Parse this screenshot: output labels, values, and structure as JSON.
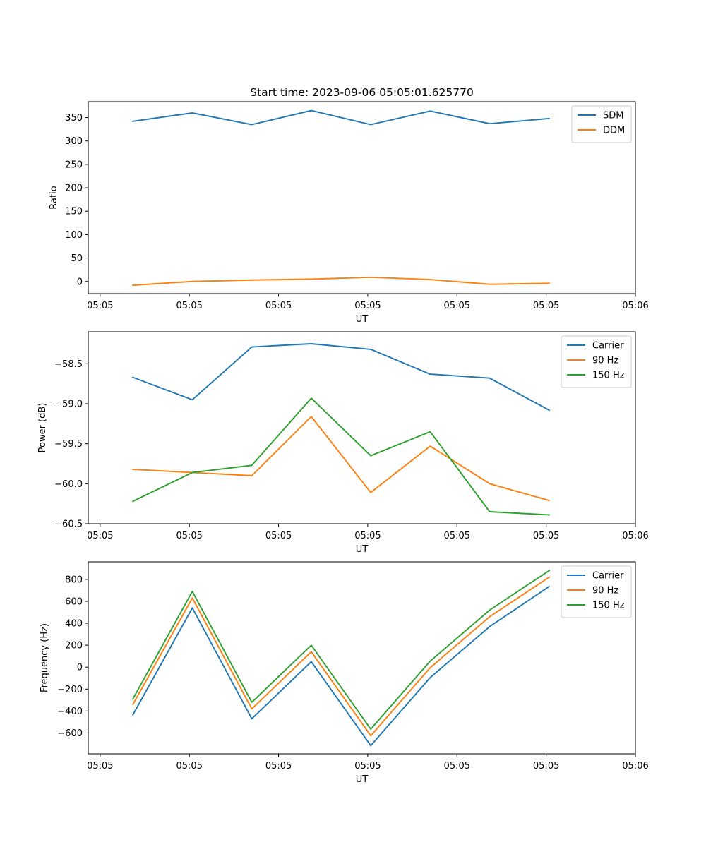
{
  "chart_data": [
    {
      "type": "line",
      "title": "Start time: 2023-09-06 05:05:01.625770",
      "xlabel": "UT",
      "ylabel": "Ratio",
      "x": [
        1,
        2,
        3,
        4,
        5,
        6,
        7,
        8
      ],
      "xlim": [
        0.25,
        9.45
      ],
      "xticks": [
        0.45,
        1.95,
        3.45,
        4.95,
        6.45,
        7.95,
        9.45
      ],
      "xtick_labels": [
        "05:05",
        "05:05",
        "05:05",
        "05:05",
        "05:05",
        "05:05",
        "05:06"
      ],
      "ylim": [
        -26,
        384
      ],
      "yticks": [
        0,
        50,
        100,
        150,
        200,
        250,
        300,
        350
      ],
      "ytick_labels": [
        "0",
        "50",
        "100",
        "150",
        "200",
        "250",
        "300",
        "350"
      ],
      "legend_position": "top-right",
      "series": [
        {
          "name": "SDM",
          "color": "#1f77b4",
          "values": [
            342,
            360,
            335,
            365,
            335,
            364,
            337,
            348
          ]
        },
        {
          "name": "DDM",
          "color": "#ff7f0e",
          "values": [
            -8,
            0,
            3,
            5,
            9,
            4,
            -6,
            -4
          ]
        }
      ]
    },
    {
      "type": "line",
      "title": "",
      "xlabel": "UT",
      "ylabel": "Power (dB)",
      "x": [
        1,
        2,
        3,
        4,
        5,
        6,
        7,
        8
      ],
      "xlim": [
        0.25,
        9.45
      ],
      "xticks": [
        0.45,
        1.95,
        3.45,
        4.95,
        6.45,
        7.95,
        9.45
      ],
      "xtick_labels": [
        "05:05",
        "05:05",
        "05:05",
        "05:05",
        "05:05",
        "05:05",
        "05:06"
      ],
      "ylim": [
        -60.5,
        -58.1
      ],
      "yticks": [
        -60.5,
        -60.0,
        -59.5,
        -59.0,
        -58.5
      ],
      "ytick_labels": [
        "−60.5",
        "−60.0",
        "−59.5",
        "−59.0",
        "−58.5"
      ],
      "legend_position": "top-right",
      "series": [
        {
          "name": "Carrier",
          "color": "#1f77b4",
          "values": [
            -58.67,
            -58.95,
            -58.29,
            -58.25,
            -58.32,
            -58.63,
            -58.68,
            -59.08
          ]
        },
        {
          "name": "90 Hz",
          "color": "#ff7f0e",
          "values": [
            -59.82,
            -59.86,
            -59.9,
            -59.16,
            -60.11,
            -59.53,
            -60.0,
            -60.21
          ]
        },
        {
          "name": "150 Hz",
          "color": "#2ca02c",
          "values": [
            -60.22,
            -59.86,
            -59.77,
            -58.93,
            -59.65,
            -59.35,
            -60.35,
            -60.39
          ]
        }
      ]
    },
    {
      "type": "line",
      "title": "",
      "xlabel": "UT",
      "ylabel": "Frequency (Hz)",
      "x": [
        1,
        2,
        3,
        4,
        5,
        6,
        7,
        8
      ],
      "xlim": [
        0.25,
        9.45
      ],
      "xticks": [
        0.45,
        1.95,
        3.45,
        4.95,
        6.45,
        7.95,
        9.45
      ],
      "xtick_labels": [
        "05:05",
        "05:05",
        "05:05",
        "05:05",
        "05:05",
        "05:05",
        "05:06"
      ],
      "ylim": [
        -790,
        960
      ],
      "yticks": [
        -600,
        -400,
        -200,
        0,
        200,
        400,
        600,
        800
      ],
      "ytick_labels": [
        "−600",
        "−400",
        "−200",
        "0",
        "200",
        "400",
        "600",
        "800"
      ],
      "legend_position": "top-right",
      "series": [
        {
          "name": "Carrier",
          "color": "#1f77b4",
          "values": [
            -435,
            540,
            -470,
            50,
            -715,
            -95,
            370,
            735
          ]
        },
        {
          "name": "90 Hz",
          "color": "#ff7f0e",
          "values": [
            -340,
            630,
            -380,
            140,
            -625,
            -5,
            460,
            820
          ]
        },
        {
          "name": "150 Hz",
          "color": "#2ca02c",
          "values": [
            -290,
            690,
            -320,
            200,
            -565,
            55,
            520,
            880
          ]
        }
      ]
    }
  ]
}
